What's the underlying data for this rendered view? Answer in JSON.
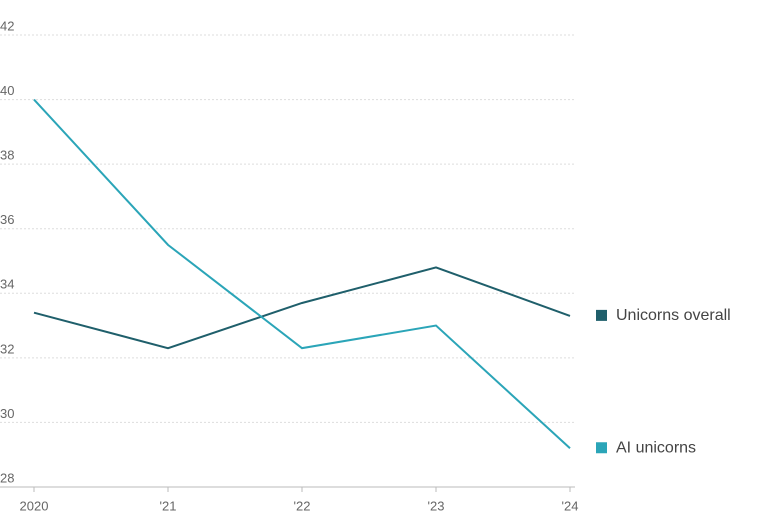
{
  "chart_data": {
    "type": "line",
    "categories": [
      "2020",
      "'21",
      "'22",
      "'23",
      "'24"
    ],
    "series": [
      {
        "name": "Unicorns overall",
        "color": "#1f5f6b",
        "values": [
          33.4,
          32.3,
          33.7,
          34.8,
          33.3
        ]
      },
      {
        "name": "AI unicorns",
        "color": "#2ba5b8",
        "values": [
          40.0,
          35.5,
          32.3,
          33.0,
          29.2
        ]
      }
    ],
    "ylim": [
      28,
      42
    ],
    "yticks": [
      28,
      30,
      32,
      34,
      36,
      38,
      40,
      42
    ],
    "grid": true
  }
}
